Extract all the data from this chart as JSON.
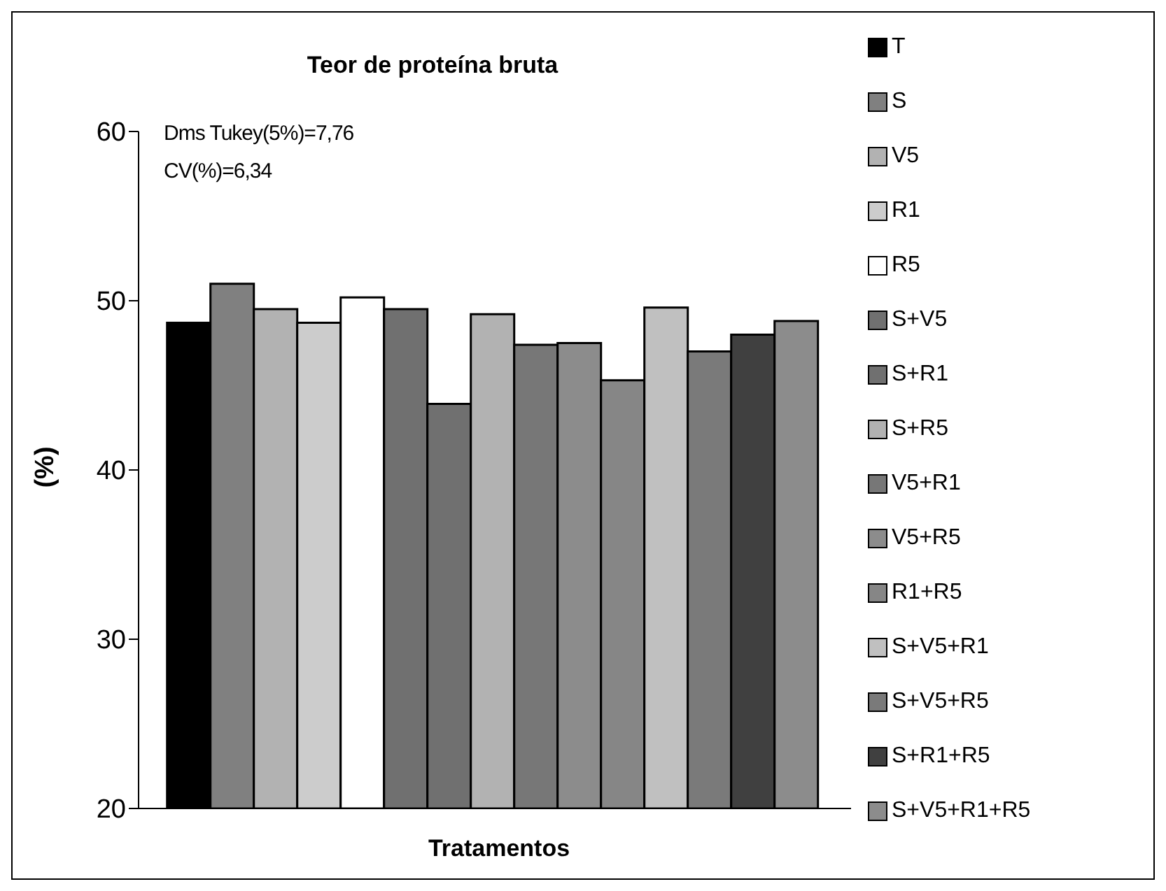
{
  "chart_data": {
    "type": "bar",
    "title": "Teor de proteína bruta",
    "xlabel": "Tratamentos",
    "ylabel": "(%)",
    "annotations": [
      "Dms Tukey(5%)=7,76",
      "CV(%)=6,34"
    ],
    "categories": [
      null
    ],
    "series": [
      {
        "name": "T",
        "color": "#000000",
        "values": [
          48.7
        ]
      },
      {
        "name": "S",
        "color": "#808080",
        "values": [
          51.0
        ]
      },
      {
        "name": "V5",
        "color": "#b2b2b2",
        "values": [
          49.5
        ]
      },
      {
        "name": "R1",
        "color": "#cccccc",
        "values": [
          48.7
        ]
      },
      {
        "name": "R5",
        "color": "#ffffff",
        "values": [
          50.2
        ]
      },
      {
        "name": "S+V5",
        "color": "#707070",
        "values": [
          49.5
        ]
      },
      {
        "name": "S+R1",
        "color": "#707070",
        "values": [
          43.9
        ]
      },
      {
        "name": "S+R5",
        "color": "#b2b2b2",
        "values": [
          49.2
        ]
      },
      {
        "name": "V5+R1",
        "color": "#777777",
        "values": [
          47.4
        ]
      },
      {
        "name": "V5+R5",
        "color": "#8c8c8c",
        "values": [
          47.5
        ]
      },
      {
        "name": "R1+R5",
        "color": "#868686",
        "values": [
          45.3
        ]
      },
      {
        "name": "S+V5+R1",
        "color": "#c0c0c0",
        "values": [
          49.6
        ]
      },
      {
        "name": "S+V5+R5",
        "color": "#7a7a7a",
        "values": [
          47.0
        ]
      },
      {
        "name": "S+R1+R5",
        "color": "#404040",
        "values": [
          48.0
        ]
      },
      {
        "name": "S+V5+R1+R5",
        "color": "#8c8c8c",
        "values": [
          48.8
        ]
      }
    ],
    "ylim": [
      20,
      60
    ],
    "yticks": [
      20,
      30,
      40,
      50,
      60
    ],
    "grid": false,
    "legend": "right"
  }
}
